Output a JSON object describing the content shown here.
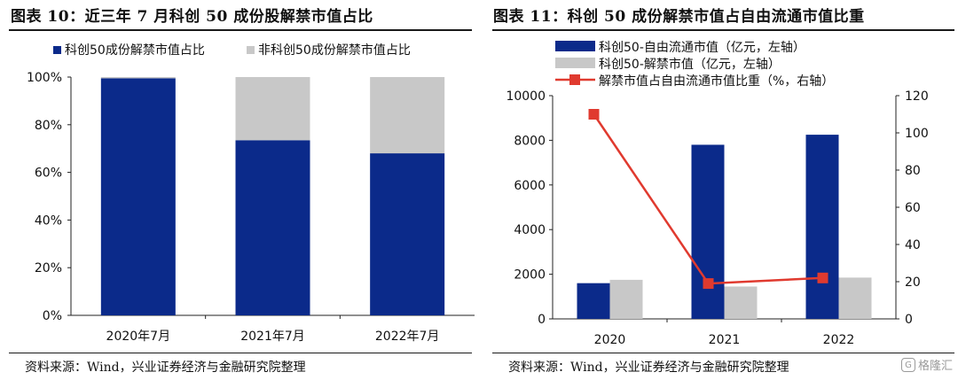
{
  "left": {
    "title": "图表 10：近三年 7 月科创 50 成份股解禁市值占比",
    "source": "资料来源：Wind，兴业证券经济与金融研究院整理"
  },
  "right": {
    "title": "图表 11：科创 50 成份解禁市值占自由流通市值比重",
    "source": "资料来源：Wind，兴业证券经济与金融研究院整理"
  },
  "watermark": {
    "text": "格隆汇"
  },
  "chart_data": [
    {
      "type": "bar",
      "stacked": true,
      "categories": [
        "2020年7月",
        "2021年7月",
        "2022年7月"
      ],
      "series": [
        {
          "name": "科创50成份解禁市值占比",
          "values": [
            99.5,
            73.5,
            68
          ],
          "color": "#0b2a8a"
        },
        {
          "name": "非科创50成份解禁市值占比",
          "values": [
            0.5,
            26.5,
            32
          ],
          "color": "#c8c8c8"
        }
      ],
      "ylim": [
        0,
        100
      ],
      "yticks": [
        "0%",
        "20%",
        "40%",
        "60%",
        "80%",
        "100%"
      ],
      "legend": "top",
      "grid": false
    },
    {
      "type": "bar",
      "categories": [
        "2020",
        "2021",
        "2022"
      ],
      "series": [
        {
          "name": "科创50-自由流通市值（亿元，左轴）",
          "type": "bar",
          "axis": "left",
          "values": [
            1600,
            7800,
            8250
          ],
          "color": "#0b2a8a"
        },
        {
          "name": "科创50-解禁市值（亿元，左轴）",
          "type": "bar",
          "axis": "left",
          "values": [
            1750,
            1450,
            1850
          ],
          "color": "#c8c8c8"
        },
        {
          "name": "解禁市值占自由流通市值比重（%，右轴）",
          "type": "line",
          "axis": "right",
          "values": [
            110,
            19,
            22
          ],
          "color": "#e03a2f"
        }
      ],
      "ylim_left": [
        0,
        10000
      ],
      "yticks_left": [
        "0",
        "2000",
        "4000",
        "6000",
        "8000",
        "10000"
      ],
      "ylim_right": [
        0,
        120
      ],
      "yticks_right": [
        "0",
        "20",
        "40",
        "60",
        "80",
        "100",
        "120"
      ],
      "legend": "top-left",
      "grid": false
    }
  ]
}
